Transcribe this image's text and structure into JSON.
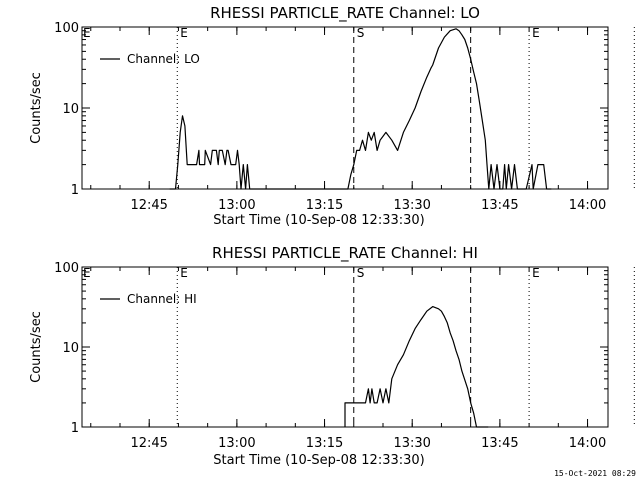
{
  "footer": {
    "timestamp": "15-Oct-2021 08:29"
  },
  "chart_data": [
    {
      "type": "line",
      "title": "RHESSI PARTICLE_RATE Channel: LO",
      "xlabel": "Start Time (10-Sep-08 12:33:30)",
      "ylabel": "Counts/sec",
      "yscale": "log",
      "ylim": [
        1,
        100
      ],
      "xlim_minutes": [
        0,
        90
      ],
      "x_ticks": [
        "12:45",
        "13:00",
        "13:15",
        "13:30",
        "13:45",
        "14:00"
      ],
      "y_ticks": [
        "1",
        "10",
        "100"
      ],
      "legend": {
        "label": "Channel: LO",
        "position": "top-left"
      },
      "markers": [
        {
          "time": "12:49.8",
          "label": "E",
          "style": "dotted"
        },
        {
          "time": "13:20.0",
          "label": "S",
          "style": "dashed"
        },
        {
          "time": "13:40.0",
          "label": "",
          "style": "dashed"
        },
        {
          "time": "13:50.0",
          "label": "E",
          "style": "dotted"
        },
        {
          "time": "14:08.0",
          "label": "",
          "style": "dotted"
        }
      ],
      "series": [
        {
          "name": "Channel: LO",
          "x": [
            15.0,
            15.5,
            16.0,
            16.4,
            16.8,
            17.2,
            17.6,
            18.0,
            18.5,
            19.0,
            19.6,
            20.0,
            20.1,
            21.0,
            21.1,
            22.0,
            22.3,
            22.5,
            23.0,
            23.3,
            23.5,
            24.0,
            24.5,
            24.8,
            25.0,
            25.5,
            26.0,
            26.3,
            26.6,
            26.9,
            27.2,
            27.6,
            28.0,
            28.3,
            28.7,
            29.0,
            45.0,
            45.5,
            46.0,
            46.5,
            47.0,
            47.5,
            48.0,
            48.5,
            49.0,
            49.5,
            50.0,
            50.5,
            51.0,
            52.0,
            53.0,
            54.0,
            55.0,
            56.0,
            57.0,
            58.0,
            59.0,
            59.7,
            60.0,
            61.0,
            62.0,
            63.0,
            64.0,
            64.5,
            65.0,
            65.5,
            66.0,
            66.5,
            67.0,
            67.5,
            68.0,
            68.5,
            69.0,
            69.3,
            69.6,
            70.0,
            70.5,
            71.0,
            71.5,
            72.0,
            72.3,
            72.6,
            73.0,
            73.5,
            74.0,
            74.5,
            75.0,
            75.5,
            76.0,
            77.0,
            77.2,
            78.0,
            78.2,
            78.5,
            79.0,
            79.5,
            80.0,
            80.3
          ],
          "values": [
            1,
            1,
            1,
            2,
            5,
            8,
            6,
            2,
            2,
            2,
            2,
            3,
            2,
            2,
            3,
            2,
            3,
            3,
            3,
            2,
            3,
            3,
            2,
            3,
            3,
            2,
            2,
            2,
            3,
            2,
            1,
            2,
            1,
            2,
            1,
            1,
            1,
            1,
            1.5,
            2,
            3,
            3,
            4,
            3,
            5,
            4,
            5,
            3,
            4,
            5,
            4,
            3,
            5,
            7,
            10,
            16,
            24,
            31,
            34,
            55,
            75,
            90,
            95,
            90,
            80,
            70,
            55,
            40,
            28,
            20,
            12,
            7,
            4,
            2,
            1,
            2,
            1,
            2,
            1,
            1,
            2,
            1,
            2,
            1,
            2,
            1,
            1,
            1,
            1,
            2,
            1,
            2,
            2,
            2,
            2,
            1,
            1,
            1
          ]
        }
      ]
    },
    {
      "type": "line",
      "title": "RHESSI PARTICLE_RATE Channel: HI",
      "xlabel": "Start Time (10-Sep-08 12:33:30)",
      "ylabel": "Counts/sec",
      "yscale": "log",
      "ylim": [
        1,
        100
      ],
      "xlim_minutes": [
        0,
        90
      ],
      "x_ticks": [
        "12:45",
        "13:00",
        "13:15",
        "13:30",
        "13:45",
        "14:00"
      ],
      "y_ticks": [
        "1",
        "10",
        "100"
      ],
      "legend": {
        "label": "Channel: HI",
        "position": "top-left"
      },
      "markers": [
        {
          "time": "12:49.8",
          "label": "E",
          "style": "dotted"
        },
        {
          "time": "13:20.0",
          "label": "S",
          "style": "dashed"
        },
        {
          "time": "13:40.0",
          "label": "",
          "style": "dashed"
        },
        {
          "time": "13:50.0",
          "label": "E",
          "style": "dotted"
        },
        {
          "time": "14:08.0",
          "label": "",
          "style": "dotted"
        }
      ],
      "series": [
        {
          "name": "Channel: HI",
          "x": [
            45.0,
            45.0,
            45.5,
            46.0,
            46.5,
            47.0,
            47.5,
            48.0,
            48.5,
            49.0,
            49.3,
            49.6,
            50.0,
            50.5,
            51.0,
            51.5,
            52.0,
            52.5,
            53.0,
            54.0,
            55.0,
            56.0,
            57.0,
            58.0,
            59.0,
            60.0,
            61.0,
            61.5,
            62.0,
            62.5,
            63.0,
            63.5,
            64.0,
            64.5,
            65.0,
            66.0,
            66.5,
            67.0,
            67.5,
            68.0,
            68.5,
            69.0,
            69.5
          ],
          "values": [
            1,
            2,
            2,
            2,
            2,
            2,
            2,
            2,
            2,
            3,
            2,
            3,
            2,
            2,
            3,
            2,
            3,
            2,
            4,
            6,
            8,
            12,
            17,
            22,
            28,
            32,
            30,
            28,
            24,
            20,
            15,
            12,
            9,
            7,
            5,
            3,
            2,
            1.5,
            1,
            1,
            1,
            1,
            1
          ]
        }
      ]
    }
  ]
}
